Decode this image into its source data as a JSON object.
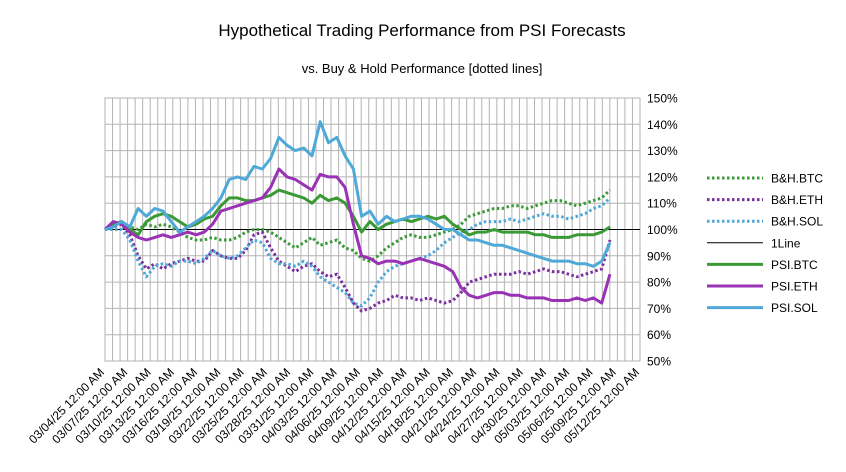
{
  "chart_data": {
    "type": "line",
    "title": "Hypothetical Trading Performance from PSI Forecasts",
    "subtitle": "vs. Buy & Hold Performance [dotted lines]",
    "xlabel": "",
    "ylabel": "",
    "ylim": [
      0.5,
      1.5
    ],
    "y_ticks": [
      "50%",
      "60%",
      "70%",
      "80%",
      "90%",
      "100%",
      "110%",
      "120%",
      "130%",
      "140%",
      "150%"
    ],
    "x_tick_labels": [
      "03/04/25 12:00 AM",
      "03/07/25 12:00 AM",
      "03/10/25 12:00 AM",
      "03/13/25 12:00 AM",
      "03/16/25 12:00 AM",
      "03/19/25 12:00 AM",
      "03/22/25 12:00 AM",
      "03/25/25 12:00 AM",
      "03/28/25 12:00 AM",
      "03/31/25 12:00 AM",
      "04/03/25 12:00 AM",
      "04/06/25 12:00 AM",
      "04/09/25 12:00 AM",
      "04/12/25 12:00 AM",
      "04/15/25 12:00 AM",
      "04/18/25 12:00 AM",
      "04/21/25 12:00 AM",
      "04/24/25 12:00 AM",
      "04/27/25 12:00 AM",
      "04/30/25 12:00 AM",
      "05/03/25 12:00 AM",
      "05/06/25 12:00 AM",
      "05/09/25 12:00 AM",
      "05/12/25 12:00 AM"
    ],
    "x_range": [
      "03/04/25",
      "05/12/25"
    ],
    "grid": true,
    "legend_position": "right",
    "reference_line": {
      "name": "1Line",
      "value": 1.0,
      "color": "#000000"
    },
    "series": [
      {
        "name": "B&H.BTC",
        "style": "dotted",
        "color": "#3a9a36",
        "values": [
          1.0,
          1.01,
          1.03,
          1.01,
          1.0,
          1.02,
          1.01,
          1.02,
          1.01,
          0.99,
          0.97,
          0.96,
          0.96,
          0.97,
          0.96,
          0.96,
          0.97,
          0.99,
          1.0,
          1.0,
          0.99,
          0.97,
          0.95,
          0.93,
          0.95,
          0.97,
          0.94,
          0.95,
          0.96,
          0.93,
          0.92,
          0.89,
          0.88,
          0.9,
          0.93,
          0.95,
          0.97,
          0.98,
          0.97,
          0.97,
          0.98,
          0.99,
          1.0,
          1.02,
          1.05,
          1.06,
          1.07,
          1.08,
          1.08,
          1.09,
          1.09,
          1.08,
          1.09,
          1.1,
          1.11,
          1.11,
          1.1,
          1.09,
          1.1,
          1.11,
          1.12,
          1.15
        ]
      },
      {
        "name": "B&H.ETH",
        "style": "dotted",
        "color": "#7b2e9e",
        "values": [
          1.0,
          1.01,
          1.02,
          0.98,
          0.9,
          0.85,
          0.87,
          0.85,
          0.87,
          0.88,
          0.89,
          0.88,
          0.88,
          0.92,
          0.9,
          0.89,
          0.89,
          0.92,
          0.98,
          0.99,
          0.93,
          0.88,
          0.86,
          0.84,
          0.86,
          0.87,
          0.84,
          0.82,
          0.83,
          0.78,
          0.72,
          0.69,
          0.7,
          0.72,
          0.73,
          0.75,
          0.74,
          0.74,
          0.73,
          0.74,
          0.73,
          0.72,
          0.73,
          0.76,
          0.8,
          0.81,
          0.82,
          0.83,
          0.83,
          0.83,
          0.84,
          0.83,
          0.84,
          0.85,
          0.84,
          0.84,
          0.83,
          0.82,
          0.83,
          0.84,
          0.85,
          0.96
        ]
      },
      {
        "name": "B&H.SOL",
        "style": "dotted",
        "color": "#4ea8d8",
        "values": [
          1.0,
          1.0,
          1.0,
          0.96,
          0.88,
          0.82,
          0.86,
          0.87,
          0.86,
          0.88,
          0.88,
          0.87,
          0.89,
          0.92,
          0.9,
          0.89,
          0.9,
          0.93,
          0.96,
          0.95,
          0.89,
          0.87,
          0.87,
          0.86,
          0.88,
          0.86,
          0.82,
          0.8,
          0.78,
          0.76,
          0.72,
          0.71,
          0.74,
          0.8,
          0.84,
          0.86,
          0.87,
          0.88,
          0.89,
          0.9,
          0.92,
          0.95,
          0.97,
          0.99,
          1.0,
          1.02,
          1.03,
          1.03,
          1.03,
          1.04,
          1.03,
          1.04,
          1.05,
          1.06,
          1.05,
          1.05,
          1.04,
          1.05,
          1.06,
          1.08,
          1.09,
          1.12
        ]
      },
      {
        "name": "PSI.BTC",
        "style": "solid",
        "color": "#3a9a36",
        "values": [
          1.0,
          1.02,
          1.03,
          1.0,
          0.98,
          1.03,
          1.05,
          1.06,
          1.05,
          1.03,
          1.01,
          1.02,
          1.04,
          1.05,
          1.09,
          1.12,
          1.12,
          1.11,
          1.11,
          1.12,
          1.13,
          1.15,
          1.14,
          1.13,
          1.12,
          1.1,
          1.13,
          1.11,
          1.12,
          1.1,
          1.05,
          0.99,
          1.03,
          1.0,
          1.02,
          1.03,
          1.04,
          1.03,
          1.04,
          1.05,
          1.04,
          1.05,
          1.02,
          1.0,
          0.98,
          0.99,
          0.99,
          1.0,
          0.99,
          0.99,
          0.99,
          0.99,
          0.98,
          0.98,
          0.97,
          0.97,
          0.97,
          0.98,
          0.98,
          0.98,
          0.99,
          1.01
        ]
      },
      {
        "name": "PSI.ETH",
        "style": "solid",
        "color": "#9932b4",
        "values": [
          1.0,
          1.03,
          1.02,
          0.99,
          0.97,
          0.96,
          0.97,
          0.98,
          0.97,
          0.98,
          0.99,
          0.98,
          0.99,
          1.02,
          1.07,
          1.08,
          1.09,
          1.1,
          1.11,
          1.12,
          1.16,
          1.23,
          1.2,
          1.19,
          1.17,
          1.15,
          1.21,
          1.2,
          1.2,
          1.16,
          1.02,
          0.9,
          0.89,
          0.87,
          0.88,
          0.88,
          0.87,
          0.88,
          0.89,
          0.88,
          0.87,
          0.86,
          0.84,
          0.78,
          0.75,
          0.74,
          0.75,
          0.76,
          0.76,
          0.75,
          0.75,
          0.74,
          0.74,
          0.74,
          0.73,
          0.73,
          0.73,
          0.74,
          0.73,
          0.74,
          0.72,
          0.83
        ]
      },
      {
        "name": "PSI.SOL",
        "style": "solid",
        "color": "#4ea8d8",
        "values": [
          1.0,
          1.01,
          1.03,
          1.01,
          1.08,
          1.05,
          1.08,
          1.07,
          1.03,
          0.99,
          1.01,
          1.03,
          1.05,
          1.08,
          1.12,
          1.19,
          1.2,
          1.19,
          1.24,
          1.23,
          1.27,
          1.35,
          1.32,
          1.3,
          1.31,
          1.28,
          1.41,
          1.33,
          1.35,
          1.28,
          1.23,
          1.05,
          1.07,
          1.02,
          1.05,
          1.03,
          1.04,
          1.05,
          1.05,
          1.04,
          1.02,
          1.0,
          1.0,
          0.98,
          0.96,
          0.96,
          0.95,
          0.94,
          0.94,
          0.93,
          0.92,
          0.91,
          0.9,
          0.89,
          0.88,
          0.88,
          0.88,
          0.87,
          0.87,
          0.86,
          0.88,
          0.95
        ]
      }
    ],
    "legend_order": [
      "B&H.BTC",
      "B&H.ETH",
      "B&H.SOL",
      "1Line",
      "PSI.BTC",
      "PSI.ETH",
      "PSI.SOL"
    ]
  }
}
